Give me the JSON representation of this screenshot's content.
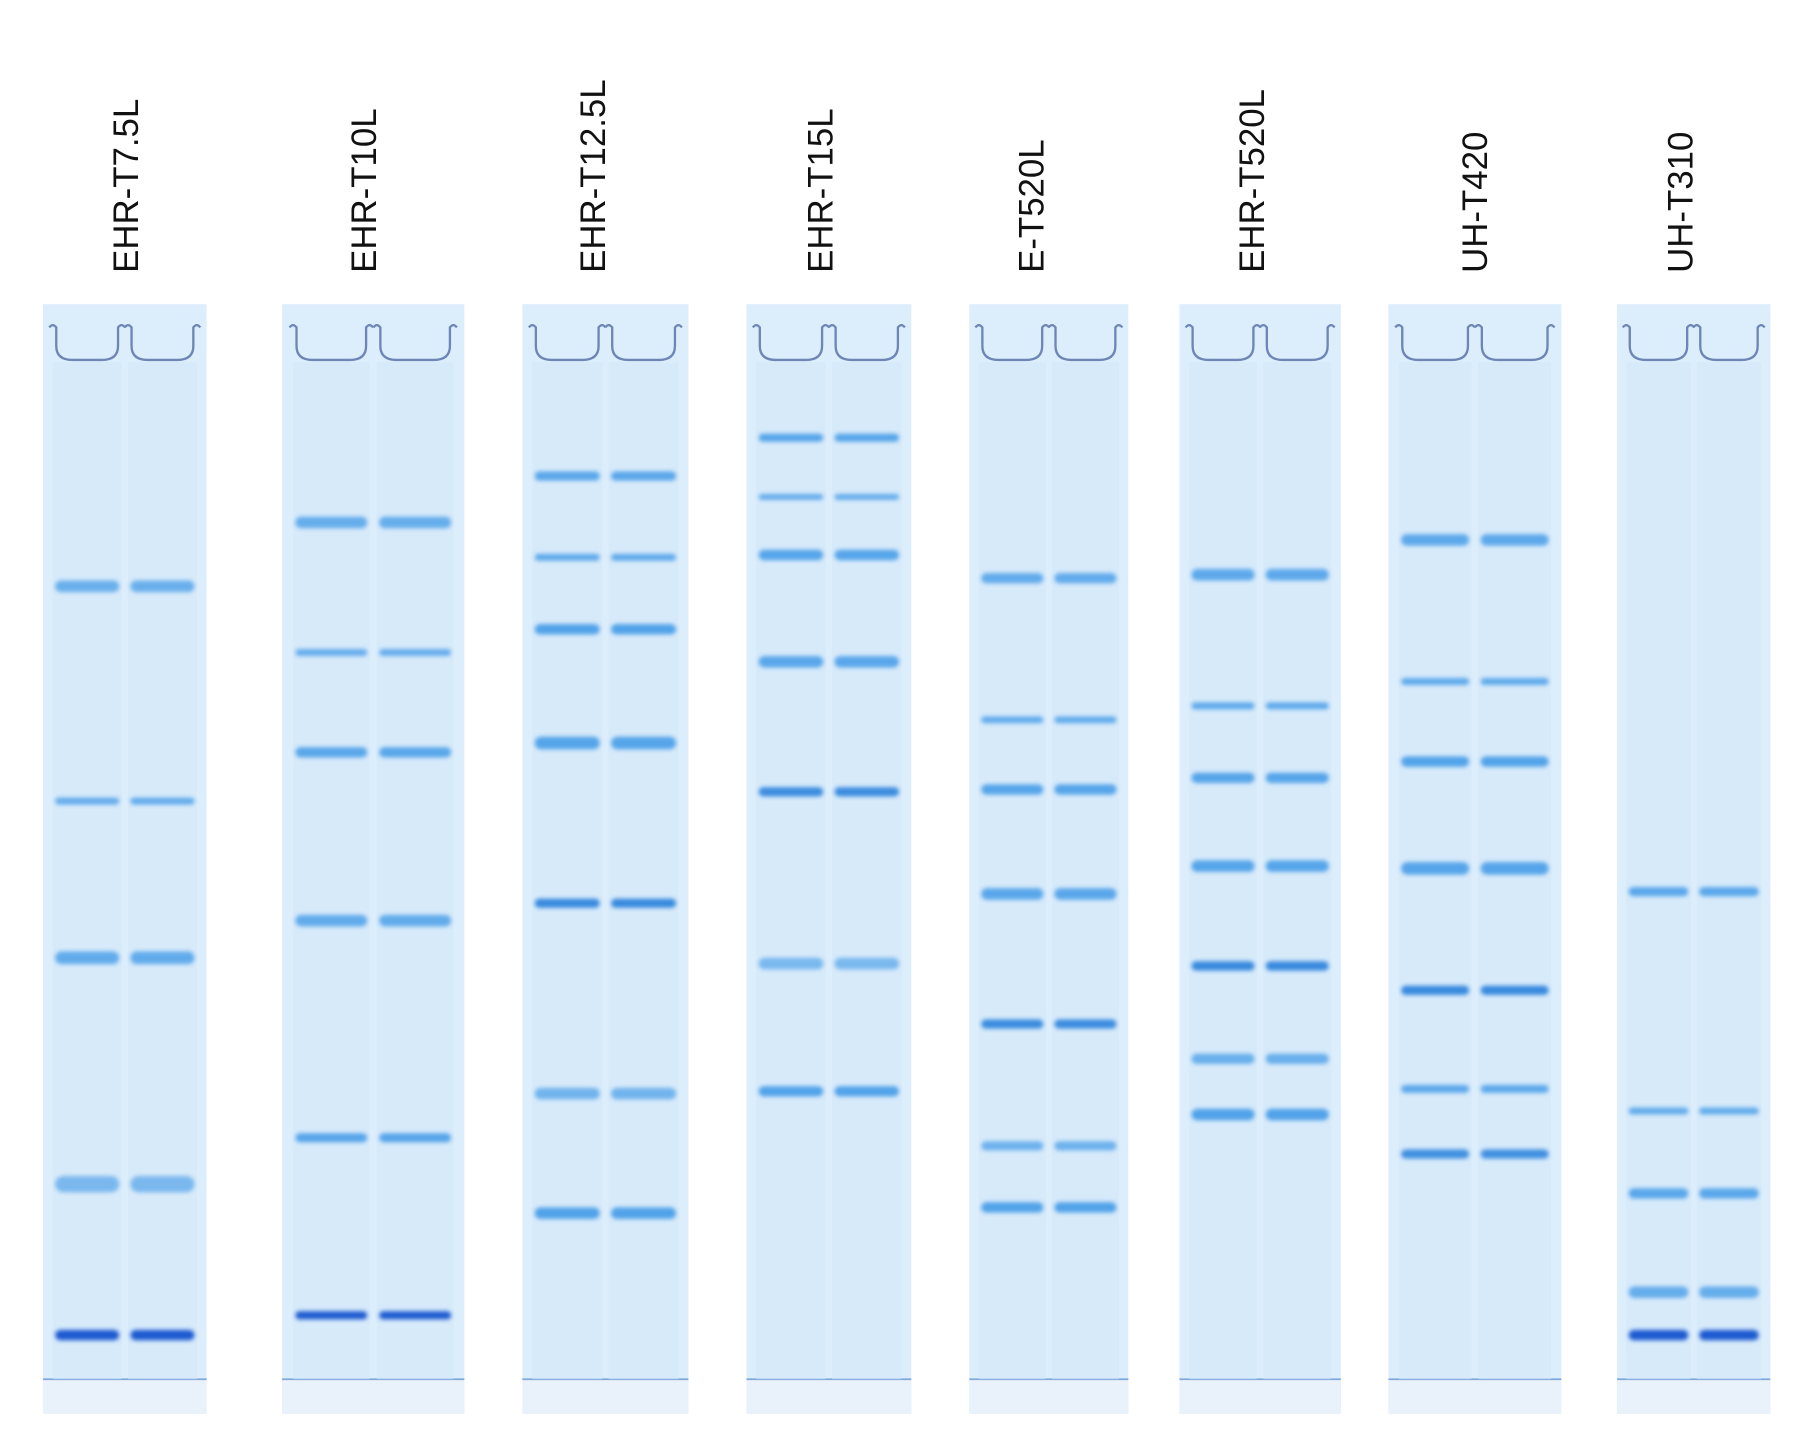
{
  "lanes": [
    "EHR-T7.5L",
    "EHR-T10L",
    "EHR-T12.5L",
    "EHR-T15L",
    "E-T520L",
    "EHR-T520L",
    "UH-T420",
    "UH-T310"
  ]
}
